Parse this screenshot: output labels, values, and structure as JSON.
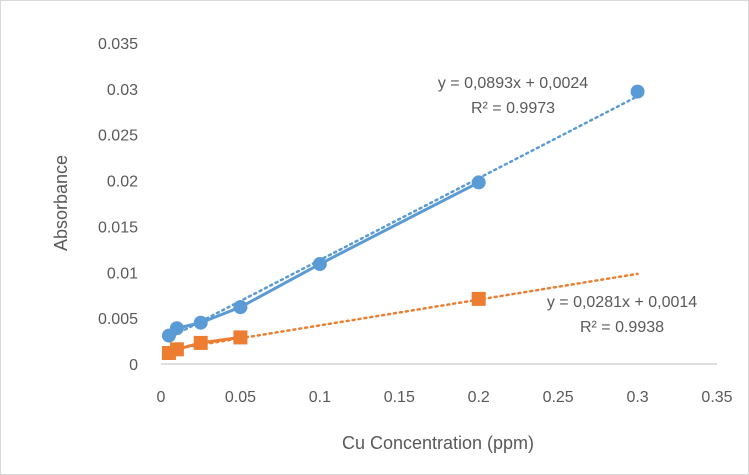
{
  "chart_data": {
    "type": "scatter",
    "title": "",
    "xlabel": "Cu Concentration (ppm)",
    "ylabel": "Absorbance",
    "xlim": [
      0,
      0.35
    ],
    "ylim": [
      0,
      0.035
    ],
    "x_ticks": [
      0,
      0.05,
      0.1,
      0.15,
      0.2,
      0.25,
      0.3,
      0.35
    ],
    "x_tick_labels": [
      "0",
      "0.05",
      "0.1",
      "0.15",
      "0.2",
      "0.25",
      "0.3",
      "0.35"
    ],
    "y_ticks": [
      0,
      0.005,
      0.01,
      0.015,
      0.02,
      0.025,
      0.03,
      0.035
    ],
    "y_tick_labels": [
      "0",
      "0.005",
      "0.01",
      "0.015",
      "0.02",
      "0.025",
      "0.03",
      "0.035"
    ],
    "grid": false,
    "legend": false,
    "series": [
      {
        "marker": "circle",
        "color": "#5b9bd5",
        "points": [
          {
            "x": 0.005,
            "y": 0.0031
          },
          {
            "x": 0.01,
            "y": 0.0039
          },
          {
            "x": 0.025,
            "y": 0.0045
          },
          {
            "x": 0.05,
            "y": 0.0062
          },
          {
            "x": 0.1,
            "y": 0.0109
          },
          {
            "x": 0.2,
            "y": 0.0198
          },
          {
            "x": 0.3,
            "y": 0.0297
          }
        ],
        "connected_until_x": 0.2,
        "trendline": {
          "slope": 0.0893,
          "intercept": 0.0024,
          "x_start": 0.005,
          "x_end": 0.3
        },
        "equation_label": "y = 0,0893x + 0,0024",
        "r2_label": "R² = 0.9973"
      },
      {
        "marker": "square",
        "color": "#ed7d31",
        "points": [
          {
            "x": 0.005,
            "y": 0.0012
          },
          {
            "x": 0.01,
            "y": 0.0016
          },
          {
            "x": 0.025,
            "y": 0.0023
          },
          {
            "x": 0.05,
            "y": 0.0029
          },
          {
            "x": 0.2,
            "y": 0.0071
          }
        ],
        "connected_until_x": 0.05,
        "trendline": {
          "slope": 0.0281,
          "intercept": 0.0014,
          "x_start": 0.005,
          "x_end": 0.3
        },
        "equation_label": "y = 0,0281x + 0,0014",
        "r2_label": "R² = 0.9938"
      }
    ]
  }
}
